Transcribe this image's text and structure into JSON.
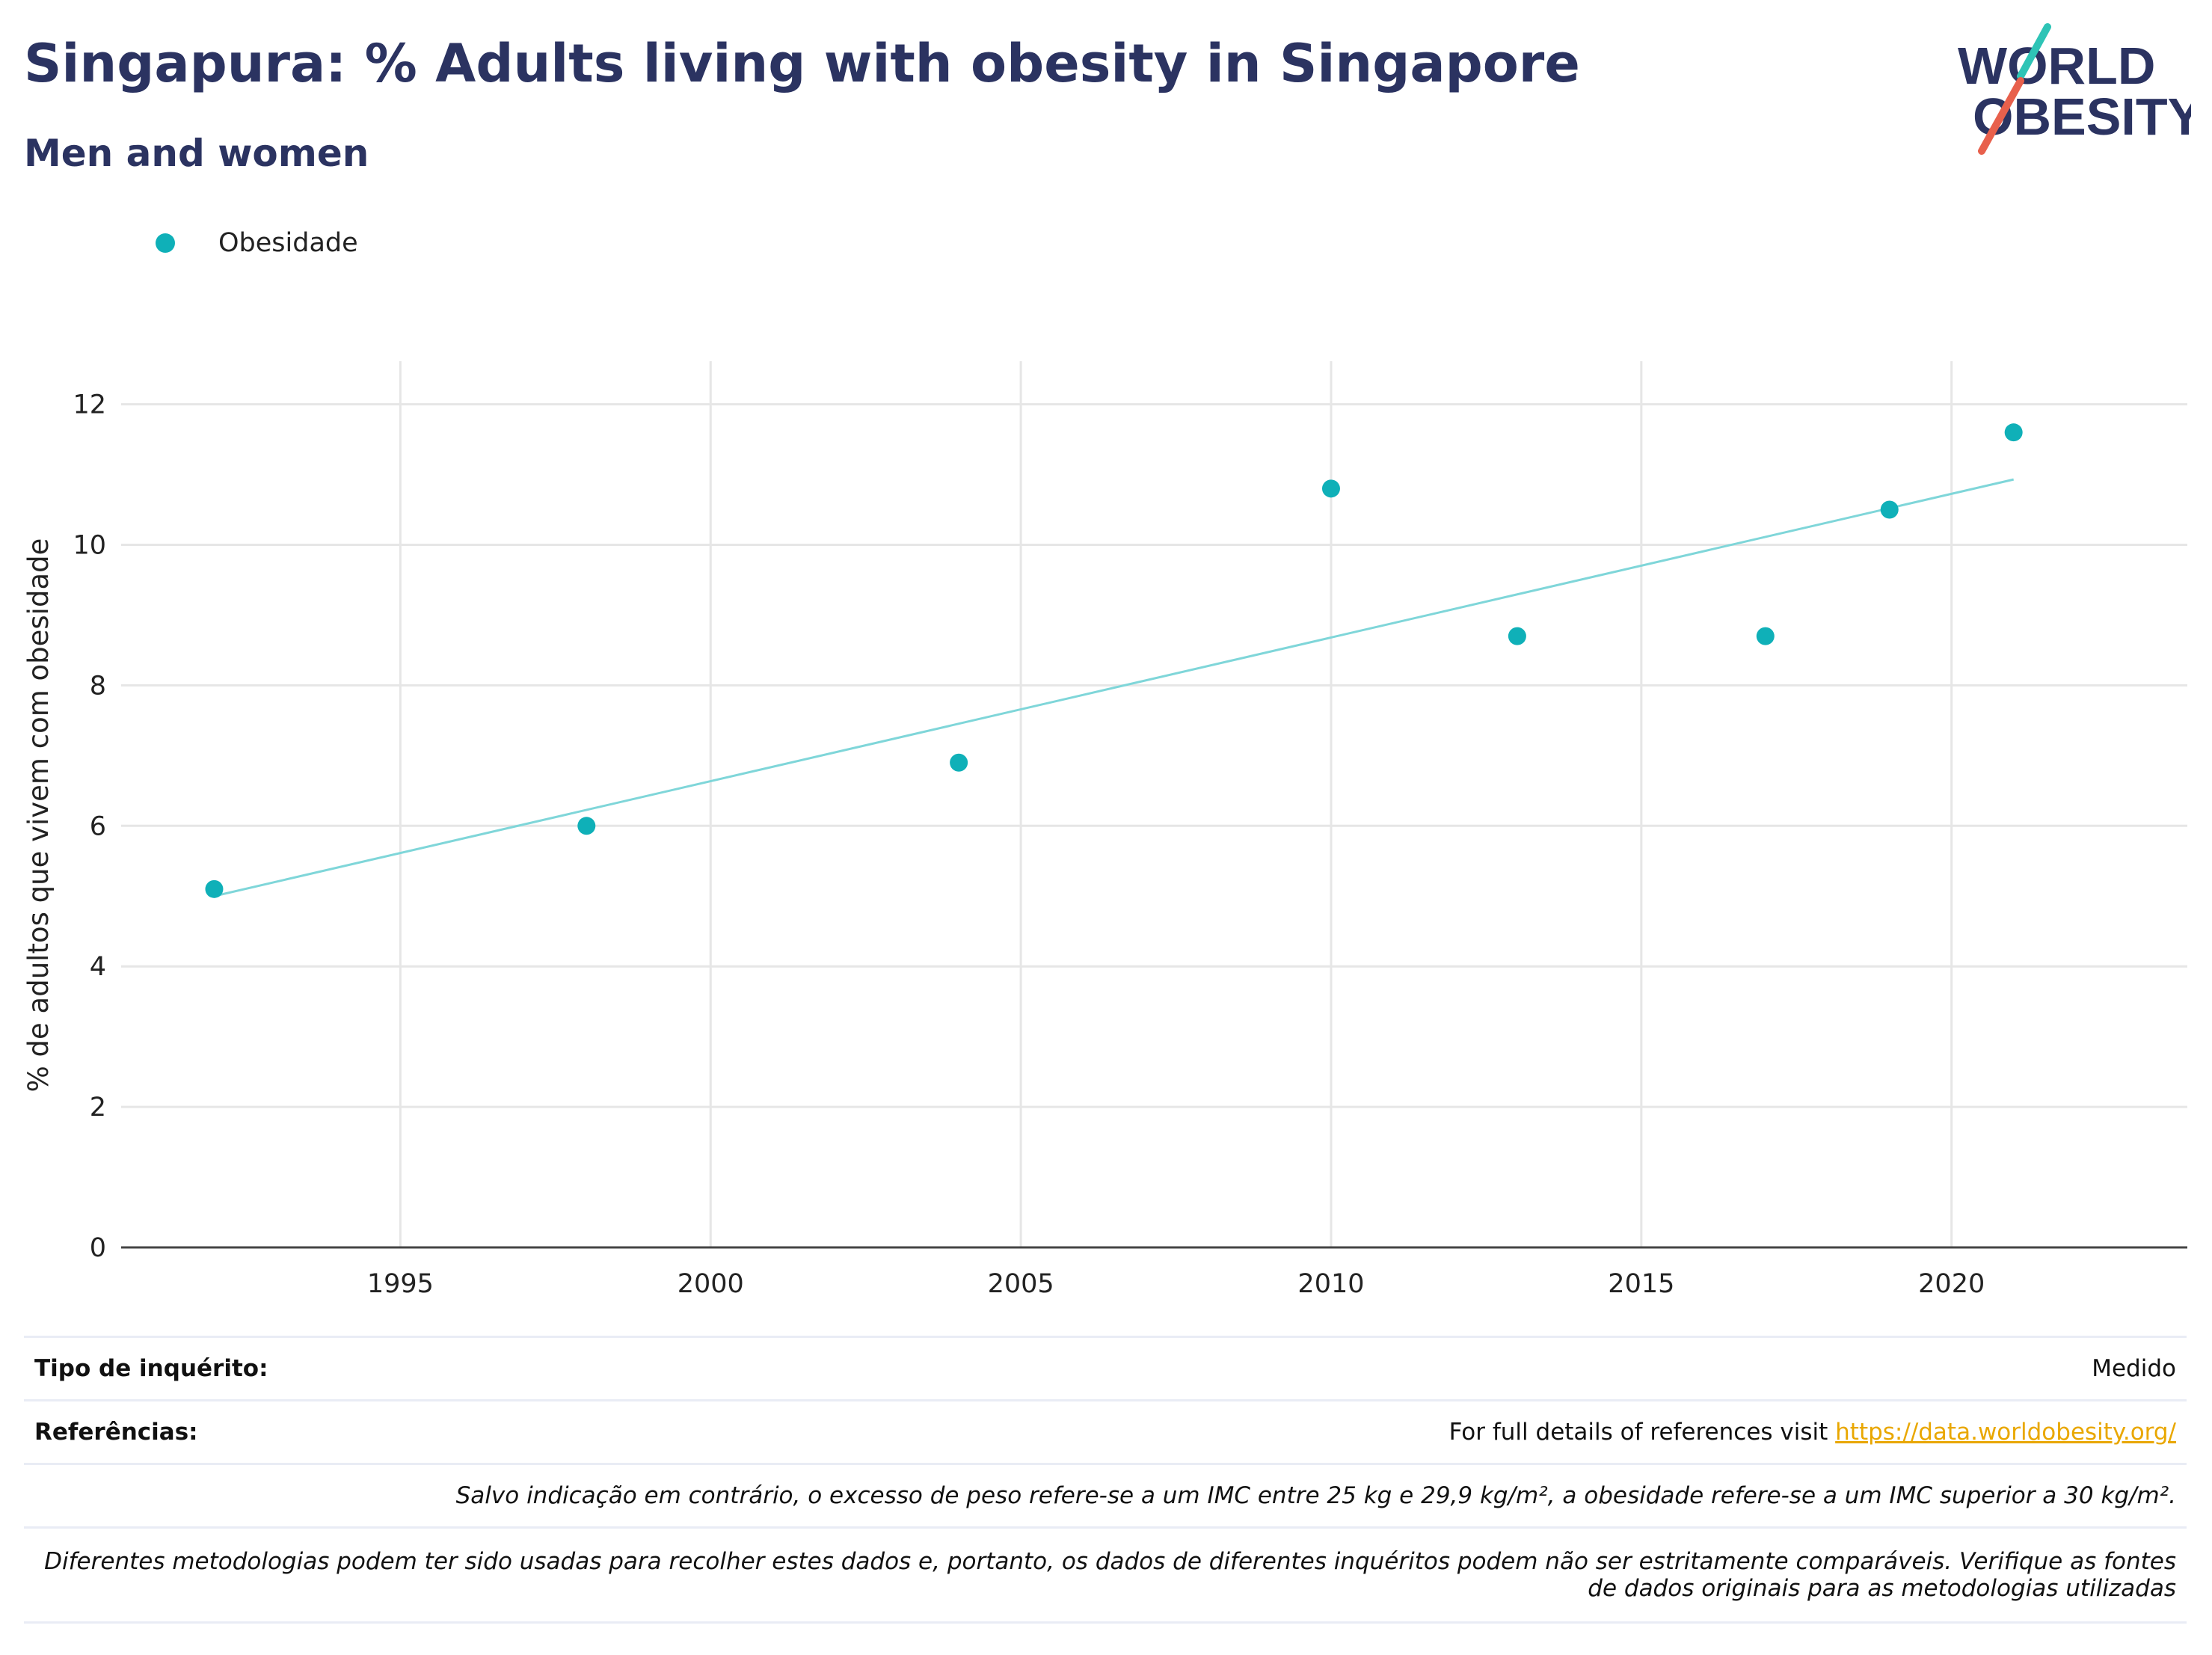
{
  "header": {
    "title": "Singapura: % Adults living with obesity in Singapore",
    "subtitle": "Men and women"
  },
  "logo": {
    "line1": "WORLD",
    "line2": "OBESITY"
  },
  "colors": {
    "point": "#0fb0b8",
    "trend": "#7fd6d9",
    "title": "#2b3361",
    "link": "#e9a700",
    "grid": "#e6e6e6"
  },
  "legend": {
    "label": "Obesidade"
  },
  "chart_data": {
    "type": "scatter",
    "ylabel": "% de adultos que vivem com obesidade",
    "xlabel": "",
    "xlim": [
      1990.5,
      2023.8
    ],
    "ylim": [
      0,
      12.4
    ],
    "xticks": [
      1995,
      2000,
      2005,
      2010,
      2015,
      2020
    ],
    "yticks": [
      0,
      2,
      4,
      6,
      8,
      10,
      12
    ],
    "grid": true,
    "legend_position": "top-left",
    "series": [
      {
        "name": "Obesidade",
        "x": [
          1992,
          1998,
          2004,
          2010,
          2013,
          2017,
          2019,
          2021
        ],
        "y": [
          5.1,
          6.0,
          6.9,
          10.8,
          8.7,
          8.7,
          10.5,
          11.6
        ]
      }
    ],
    "trendline": {
      "x": [
        1992,
        2021
      ],
      "y": [
        5.0,
        10.93
      ]
    }
  },
  "notes": {
    "survey_label": "Tipo de inquérito:",
    "survey_value": "Medido",
    "refs_label": "Referências:",
    "refs_text": "For full details of references visit",
    "refs_link": "https://data.worldobesity.org/",
    "note1": "Salvo indicação em contrário, o excesso de peso refere-se a um IMC entre 25 kg e 29,9 kg/m², a obesidade refere-se a um IMC superior a 30 kg/m².",
    "note2_line1": "Diferentes metodologias podem ter sido usadas para recolher estes dados e, portanto, os dados de diferentes inquéritos podem não ser estritamente comparáveis. Verifique as fontes",
    "note2_line2": "de dados originais para as metodologias utilizadas"
  }
}
